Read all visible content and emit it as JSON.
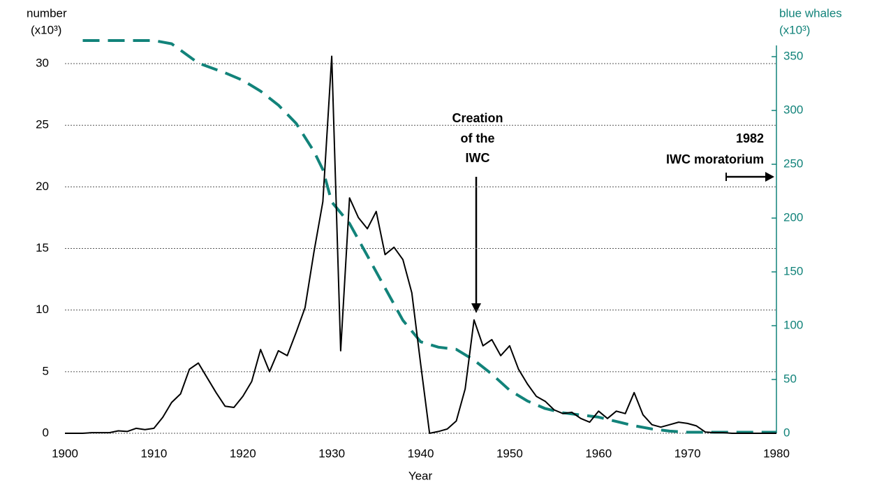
{
  "chart_data": {
    "type": "line",
    "y_label": [
      "number",
      "(x10³)"
    ],
    "y2_label": [
      "blue whales",
      "(x10³)"
    ],
    "x_label": "Year",
    "xlim": [
      1900,
      1980
    ],
    "xticks": [
      1900,
      1910,
      1920,
      1930,
      1940,
      1950,
      1960,
      1970,
      1980
    ],
    "ylim": [
      0,
      31
    ],
    "yticks": [
      0,
      5,
      10,
      15,
      20,
      25,
      30
    ],
    "y2lim": [
      0,
      355
    ],
    "y2ticks": [
      0,
      50,
      100,
      150,
      200,
      250,
      300,
      350
    ],
    "grid": true,
    "annotations": [
      {
        "lines": [
          "Creation",
          "of the",
          "IWC"
        ]
      },
      {
        "lines": [
          "1982",
          "IWC moratorium"
        ]
      }
    ],
    "series": [
      {
        "color": "#000000",
        "dashed": false,
        "x": [
          1900,
          1901,
          1902,
          1903,
          1904,
          1905,
          1906,
          1907,
          1908,
          1909,
          1910,
          1911,
          1912,
          1913,
          1914,
          1915,
          1916,
          1917,
          1918,
          1919,
          1920,
          1921,
          1922,
          1923,
          1924,
          1925,
          1926,
          1927,
          1928,
          1929,
          1930,
          1931,
          1932,
          1933,
          1934,
          1935,
          1936,
          1937,
          1938,
          1939,
          1940,
          1941,
          1942,
          1943,
          1944,
          1945,
          1946,
          1947,
          1948,
          1949,
          1950,
          1951,
          1952,
          1953,
          1954,
          1955,
          1956,
          1957,
          1958,
          1959,
          1960,
          1961,
          1962,
          1963,
          1964,
          1965,
          1966,
          1967,
          1968,
          1969,
          1970,
          1971,
          1972,
          1973,
          1974,
          1975,
          1976,
          1977,
          1978,
          1979,
          1980
        ],
        "values": [
          0,
          0,
          0,
          0.05,
          0.05,
          0.05,
          0.2,
          0.15,
          0.4,
          0.3,
          0.4,
          1.3,
          2.5,
          3.2,
          5.2,
          5.7,
          4.5,
          3.3,
          2.2,
          2.1,
          3.0,
          4.2,
          6.8,
          5.0,
          6.7,
          6.3,
          8.2,
          10.2,
          14.7,
          18.8,
          30.6,
          6.7,
          19.1,
          17.5,
          16.6,
          18.0,
          14.5,
          15.1,
          14.1,
          11.4,
          5.6,
          0,
          0.15,
          0.35,
          1.0,
          3.6,
          9.2,
          7.1,
          7.6,
          6.3,
          7.1,
          5.2,
          4.0,
          3.0,
          2.6,
          1.9,
          1.6,
          1.7,
          1.2,
          0.9,
          1.8,
          1.2,
          1.8,
          1.6,
          3.3,
          1.5,
          0.7,
          0.5,
          0.7,
          0.9,
          0.8,
          0.6,
          0.1,
          0.05,
          0.05,
          0,
          0,
          0,
          0,
          0,
          0
        ]
      },
      {
        "color": "#12837a",
        "dashed": true,
        "axis": "y2",
        "x": [
          1902,
          1906,
          1910,
          1912,
          1915,
          1918,
          1920,
          1922,
          1924,
          1926,
          1928,
          1929,
          1930,
          1932,
          1934,
          1936,
          1938,
          1940,
          1942,
          1944,
          1946,
          1948,
          1950,
          1952,
          1954,
          1956,
          1958,
          1960,
          1962,
          1964,
          1966,
          1968,
          1970,
          1972,
          1976,
          1980
        ],
        "values": [
          365,
          365,
          365,
          362,
          344,
          335,
          328,
          318,
          305,
          288,
          262,
          245,
          215,
          195,
          165,
          135,
          105,
          85,
          80,
          78,
          68,
          55,
          40,
          30,
          23,
          19,
          17,
          15,
          11,
          7,
          4,
          2,
          1,
          1,
          1,
          1
        ]
      }
    ]
  }
}
